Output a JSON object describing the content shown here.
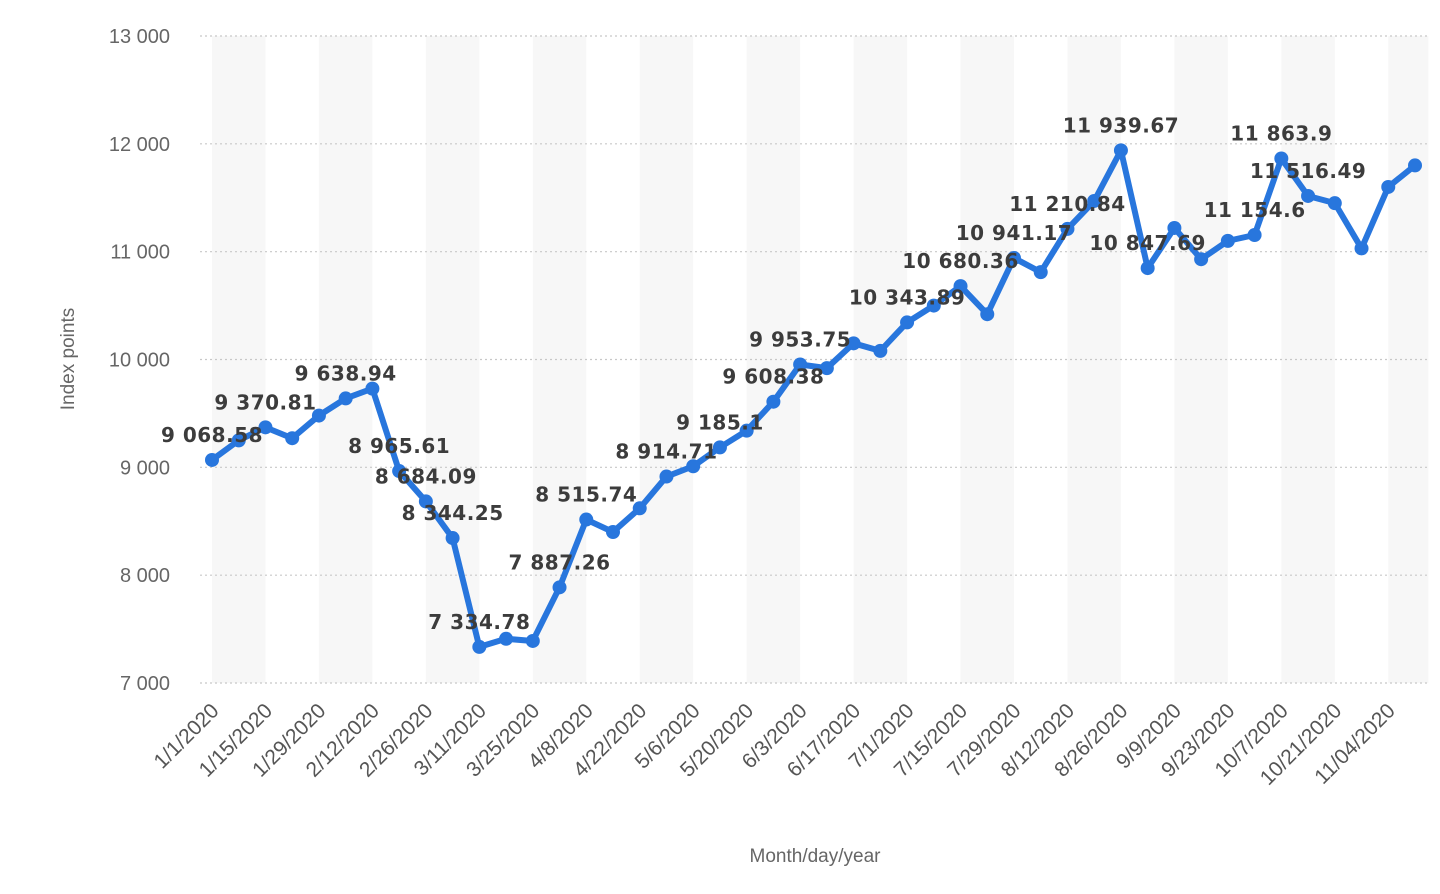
{
  "chart_data": {
    "type": "line",
    "title": "",
    "xlabel": "Month/day/year",
    "ylabel": "Index points",
    "ylim": [
      7000,
      13000
    ],
    "yticks": [
      7000,
      8000,
      9000,
      10000,
      11000,
      12000,
      13000
    ],
    "ytick_labels": [
      "7 000",
      "8 000",
      "9 000",
      "10 000",
      "11 000",
      "12 000",
      "13 000"
    ],
    "grid": "horizontal dotted",
    "line_color": "#2876dd",
    "band_color": "#f7f7f7",
    "grid_color": "#c8c8c8",
    "x_tick_labels": [
      "1/1/2020",
      "1/15/2020",
      "1/29/2020",
      "2/12/2020",
      "2/26/2020",
      "3/11/2020",
      "3/25/2020",
      "4/8/2020",
      "4/22/2020",
      "5/6/2020",
      "5/20/2020",
      "6/3/2020",
      "6/17/2020",
      "7/1/2020",
      "7/15/2020",
      "7/29/2020",
      "8/12/2020",
      "8/26/2020",
      "9/9/2020",
      "9/23/2020",
      "10/7/2020",
      "10/21/2020",
      "11/04/2020"
    ],
    "x_tick_every": 2,
    "values": [
      9068.58,
      9250,
      9370.81,
      9270,
      9480,
      9638.94,
      9730,
      8965.61,
      8684.09,
      8344.25,
      7334.78,
      7410,
      7390,
      7887.26,
      8515.74,
      8400,
      8620,
      8914.71,
      9010,
      9185.1,
      9340,
      9608.38,
      9953.75,
      9920,
      10150,
      10080,
      10343.89,
      10500,
      10680.36,
      10420,
      10941.17,
      10810,
      11210.84,
      11470,
      11939.67,
      10847.69,
      11220,
      10930,
      11100,
      11154.6,
      11863.9,
      11516.49,
      11450,
      11030,
      11600,
      11800
    ],
    "data_labels": [
      {
        "index": 0,
        "text": "9 068.58"
      },
      {
        "index": 2,
        "text": "9 370.81"
      },
      {
        "index": 5,
        "text": "9 638.94"
      },
      {
        "index": 7,
        "text": "8 965.61"
      },
      {
        "index": 8,
        "text": "8 684.09"
      },
      {
        "index": 9,
        "text": "8 344.25"
      },
      {
        "index": 10,
        "text": "7 334.78"
      },
      {
        "index": 13,
        "text": "7 887.26"
      },
      {
        "index": 14,
        "text": "8 515.74"
      },
      {
        "index": 17,
        "text": "8 914.71"
      },
      {
        "index": 19,
        "text": "9 185.1"
      },
      {
        "index": 21,
        "text": "9 608.38"
      },
      {
        "index": 22,
        "text": "9 953.75"
      },
      {
        "index": 26,
        "text": "10 343.89"
      },
      {
        "index": 28,
        "text": "10 680.36"
      },
      {
        "index": 30,
        "text": "10 941.17"
      },
      {
        "index": 32,
        "text": "11 210.84"
      },
      {
        "index": 34,
        "text": "11 939.67"
      },
      {
        "index": 35,
        "text": "10 847.69"
      },
      {
        "index": 39,
        "text": "11 154.6"
      },
      {
        "index": 40,
        "text": "11 863.9"
      },
      {
        "index": 41,
        "text": "11 516.49"
      }
    ]
  }
}
